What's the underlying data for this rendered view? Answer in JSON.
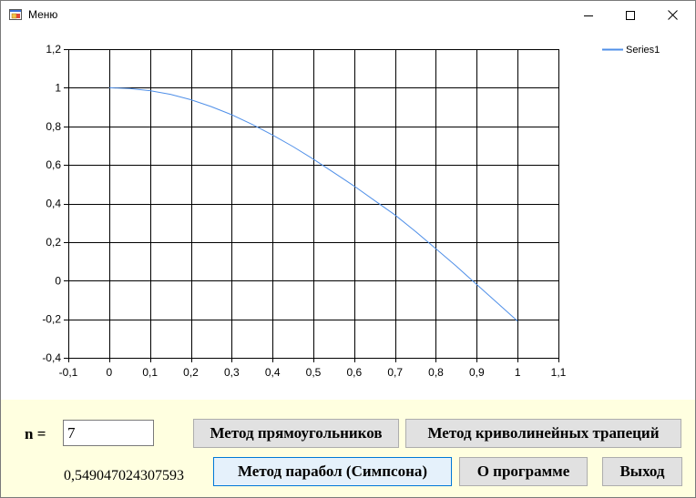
{
  "window": {
    "title": "Меню",
    "icons": {
      "app": "app-icon",
      "minimize": "minimize-icon",
      "maximize": "maximize-icon",
      "close": "close-icon"
    }
  },
  "chart_data": {
    "type": "line",
    "title": "",
    "xlabel": "",
    "ylabel": "",
    "xlim": [
      -0.1,
      1.1
    ],
    "ylim": [
      -0.4,
      1.2
    ],
    "x_ticks": [
      "-0,1",
      "0",
      "0,1",
      "0,2",
      "0,3",
      "0,4",
      "0,5",
      "0,6",
      "0,7",
      "0,8",
      "0,9",
      "1",
      "1,1"
    ],
    "y_ticks": [
      "-0,4",
      "-0,2",
      "0",
      "0,2",
      "0,4",
      "0,6",
      "0,8",
      "1",
      "1,2"
    ],
    "grid": true,
    "legend_position": "top-right",
    "series": [
      {
        "name": "Series1",
        "color": "#4f8fe8",
        "x": [
          0,
          0.05,
          0.1,
          0.15,
          0.2,
          0.25,
          0.3,
          0.35,
          0.4,
          0.45,
          0.5,
          0.55,
          0.6,
          0.65,
          0.7,
          0.75,
          0.8,
          0.85,
          0.9,
          0.95,
          1.0
        ],
        "y": [
          1.0,
          0.996,
          0.985,
          0.966,
          0.938,
          0.902,
          0.86,
          0.81,
          0.755,
          0.695,
          0.63,
          0.56,
          0.49,
          0.415,
          0.34,
          0.255,
          0.165,
          0.075,
          -0.02,
          -0.115,
          -0.21
        ]
      }
    ]
  },
  "controls": {
    "n_label": "n =",
    "n_value": "7",
    "result": "0,549047024307593",
    "buttons": {
      "rectangles": "Метод прямоугольников",
      "trapezoids": "Метод криволинейных трапеций",
      "simpson": "Метод парабол (Симпсона)",
      "about": "О программе",
      "exit": "Выход"
    }
  }
}
